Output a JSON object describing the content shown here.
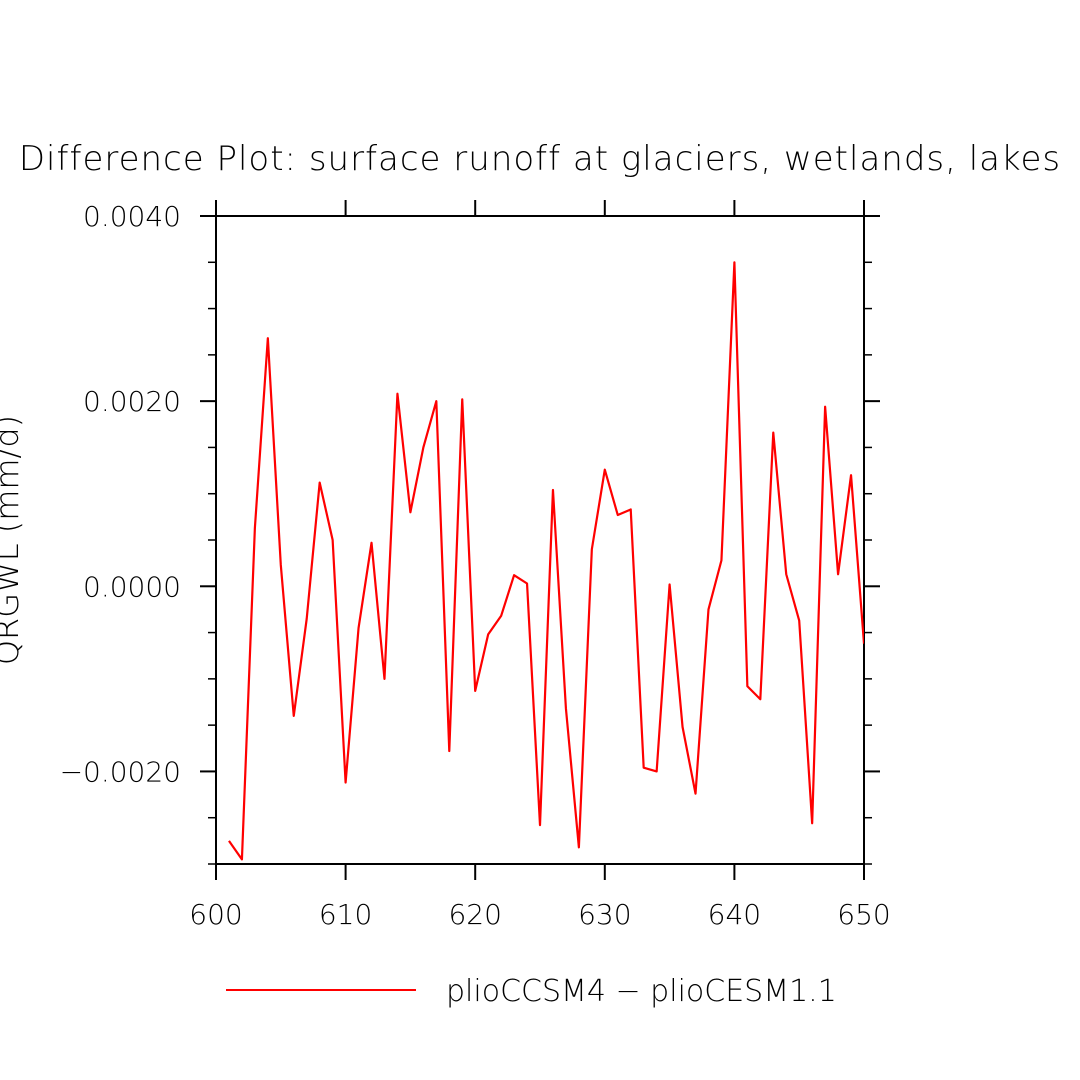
{
  "chart_data": {
    "type": "line",
    "title": "Difference Plot: surface runoff at glaciers, wetlands, lakes",
    "xlabel": "",
    "ylabel": "QRGWL  (mm/d)",
    "xlim": [
      600,
      650
    ],
    "ylim": [
      -0.003,
      0.004
    ],
    "x_ticks": [
      600,
      610,
      620,
      630,
      640,
      650
    ],
    "x_tick_labels": [
      "600",
      "610",
      "620",
      "630",
      "640",
      "650"
    ],
    "y_ticks": [
      -0.002,
      0.0,
      0.002,
      0.004
    ],
    "y_tick_labels": [
      "−0.0020",
      "0.0000",
      "0.0020",
      "0.0040"
    ],
    "legend_position": "bottom",
    "grid": false,
    "series": [
      {
        "name": "plioCCSM4 − plioCESM1.1",
        "color": "#ff0000",
        "x": [
          601,
          602,
          603,
          604,
          605,
          606,
          607,
          608,
          609,
          610,
          611,
          612,
          613,
          614,
          615,
          616,
          617,
          618,
          619,
          620,
          621,
          622,
          623,
          624,
          625,
          626,
          627,
          628,
          629,
          630,
          631,
          632,
          633,
          634,
          635,
          636,
          637,
          638,
          639,
          640,
          641,
          642,
          643,
          644,
          645,
          646,
          647,
          648,
          649,
          650
        ],
        "y": [
          -0.00275,
          -0.00295,
          0.00063,
          0.00268,
          0.00023,
          -0.0014,
          -0.00035,
          0.00112,
          0.0005,
          -0.00212,
          -0.00045,
          0.00047,
          -0.001,
          0.00208,
          0.0008,
          0.0015,
          0.002,
          -0.00178,
          0.00202,
          -0.00113,
          -0.00052,
          -0.00032,
          0.00012,
          3e-05,
          -0.00258,
          0.00104,
          -0.00132,
          -0.00282,
          0.0004,
          0.00126,
          0.00077,
          0.00083,
          -0.00196,
          -0.002,
          2e-05,
          -0.00152,
          -0.00224,
          -0.00025,
          0.00028,
          0.0035,
          -0.00108,
          -0.00122,
          0.00166,
          0.00013,
          -0.00037,
          -0.00256,
          0.00194,
          0.00013,
          0.0012,
          -0.00062
        ]
      }
    ]
  }
}
